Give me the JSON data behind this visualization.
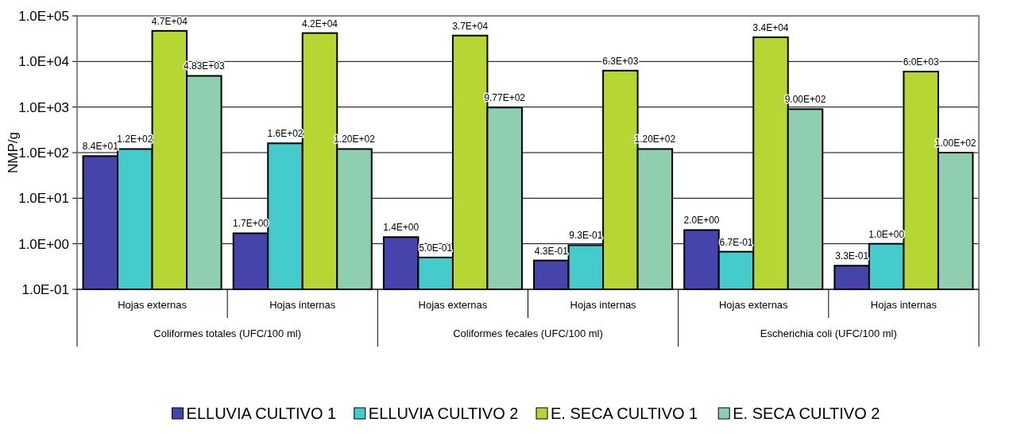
{
  "chart_data": {
    "type": "bar",
    "ylabel": "NMP/g",
    "log": true,
    "grid": "y",
    "legend": "bottom",
    "categories": [
      "Hojas externas",
      "Hojas internas",
      "Hojas externas",
      "Hojas internas",
      "Hojas externas",
      "Hojas internas"
    ],
    "annotations": [
      "Coliformes totales (UFC/100 ml)",
      "Coliformes fecales (UFC/100 ml)",
      "Escherichia coli (UFC/100 ml)"
    ],
    "ylim": [
      0.1,
      100000
    ],
    "yticks": [
      {
        "value": 0.1,
        "label": "1.0E-01"
      },
      {
        "value": 1,
        "label": "1.0E+00"
      },
      {
        "value": 10,
        "label": "1.0E+01"
      },
      {
        "value": 100,
        "label": "1.0E+02"
      },
      {
        "value": 1000,
        "label": "1.0E+03"
      },
      {
        "value": 10000,
        "label": "1.0E+04"
      },
      {
        "value": 100000,
        "label": "1.0E+05"
      }
    ],
    "series": [
      {
        "name": "ELLUVIA CULTIVO 1",
        "color": "#4444aa",
        "values": [
          84,
          1.7,
          1.4,
          0.43,
          2.0,
          0.33
        ],
        "value_labels": [
          "8.4E+01",
          "1.7E+00",
          "1.4E+00",
          "4.3E-01",
          "2.0E+00",
          "3.3E-01"
        ]
      },
      {
        "name": "ELLUVIA CULTIVO 2",
        "color": "#44cccc",
        "values": [
          120,
          160,
          0.5,
          0.93,
          0.67,
          1.0
        ],
        "value_labels": [
          "1.2E+02",
          "1.6E+02",
          "5.0E-01",
          "9.3E-01",
          "6.7E-01",
          "1.0E+00"
        ]
      },
      {
        "name": "E. SECA CULTIVO 1",
        "color": "#b5d633",
        "values": [
          47000,
          42000,
          37000,
          6300,
          34000,
          6000
        ],
        "value_labels": [
          "4.7E+04",
          "4.2E+04",
          "3.7E+04",
          "6.3E+03",
          "3.4E+04",
          "6.0E+03"
        ]
      },
      {
        "name": "E. SECA CULTIVO 2",
        "color": "#8fcfb0",
        "values": [
          4830,
          120,
          977,
          120,
          900,
          100
        ],
        "value_labels": [
          "4.83E+03",
          "1.20E+02",
          "9.77E+02",
          "1.20E+02",
          "9.00E+02",
          "1.00E+02"
        ]
      }
    ]
  }
}
